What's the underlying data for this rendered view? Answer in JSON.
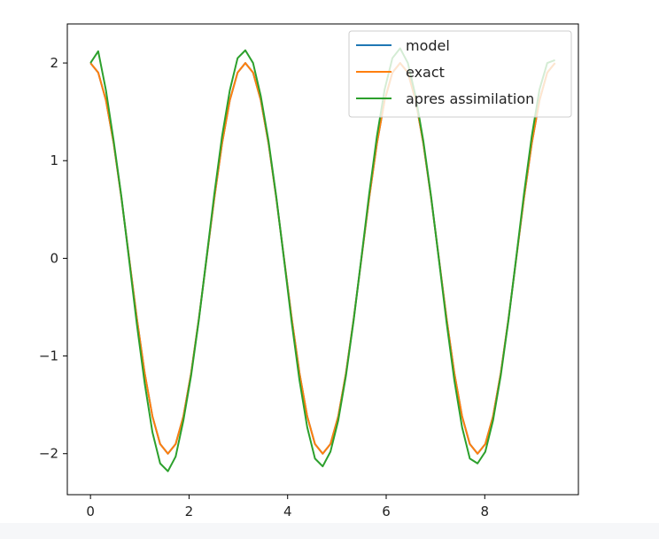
{
  "colors": {
    "model": "#1f77b4",
    "exact": "#ff7f0e",
    "apres_assimilation": "#2ca02c"
  },
  "chart_data": {
    "type": "line",
    "xlim": [
      -0.47,
      9.9
    ],
    "ylim": [
      -2.42,
      2.4
    ],
    "x_ticks": [
      0,
      2,
      4,
      6,
      8
    ],
    "y_ticks": [
      2,
      1,
      0,
      -1,
      -2
    ],
    "x_tick_labels": [
      "0",
      "2",
      "4",
      "6",
      "8"
    ],
    "y_tick_labels": [
      "2",
      "1",
      "0",
      "−1",
      "−2"
    ],
    "legend_position": "top-right",
    "series": [
      {
        "name": "model",
        "color": "#1f77b4",
        "x": [
          0,
          0.157,
          0.314,
          0.471,
          0.628,
          0.785,
          0.942,
          1.1,
          1.257,
          1.414,
          1.571,
          1.728,
          1.885,
          2.042,
          2.199,
          2.356,
          2.513,
          2.67,
          2.827,
          2.985,
          3.142,
          3.299,
          3.456,
          3.613,
          3.77,
          3.927,
          4.084,
          4.241,
          4.398,
          4.555,
          4.712,
          4.869,
          5.027,
          5.184,
          5.341,
          5.498,
          5.655,
          5.812,
          5.969,
          6.126,
          6.283,
          6.44,
          6.597,
          6.754,
          6.912,
          7.069,
          7.226,
          7.383,
          7.54,
          7.697,
          7.854,
          8.011,
          8.168,
          8.325,
          8.482,
          8.639,
          8.796,
          8.954,
          9.111,
          9.268,
          9.425
        ],
        "y": [
          2.0,
          1.902,
          1.618,
          1.176,
          0.618,
          0.0,
          -0.618,
          -1.176,
          -1.618,
          -1.902,
          -2.0,
          -1.902,
          -1.618,
          -1.176,
          -0.618,
          0.0,
          0.618,
          1.176,
          1.618,
          1.902,
          2.0,
          1.902,
          1.618,
          1.176,
          0.618,
          0.0,
          -0.618,
          -1.176,
          -1.618,
          -1.902,
          -2.0,
          -1.902,
          -1.618,
          -1.176,
          -0.618,
          0.0,
          0.618,
          1.176,
          1.618,
          1.902,
          2.0,
          1.902,
          1.618,
          1.176,
          0.618,
          0.0,
          -0.618,
          -1.176,
          -1.618,
          -1.902,
          -2.0,
          -1.902,
          -1.618,
          -1.176,
          -0.618,
          0.0,
          0.618,
          1.176,
          1.618,
          1.902,
          2.0
        ]
      },
      {
        "name": "exact",
        "color": "#ff7f0e",
        "x": [
          0,
          0.157,
          0.314,
          0.471,
          0.628,
          0.785,
          0.942,
          1.1,
          1.257,
          1.414,
          1.571,
          1.728,
          1.885,
          2.042,
          2.199,
          2.356,
          2.513,
          2.67,
          2.827,
          2.985,
          3.142,
          3.299,
          3.456,
          3.613,
          3.77,
          3.927,
          4.084,
          4.241,
          4.398,
          4.555,
          4.712,
          4.869,
          5.027,
          5.184,
          5.341,
          5.498,
          5.655,
          5.812,
          5.969,
          6.126,
          6.283,
          6.44,
          6.597,
          6.754,
          6.912,
          7.069,
          7.226,
          7.383,
          7.54,
          7.697,
          7.854,
          8.011,
          8.168,
          8.325,
          8.482,
          8.639,
          8.796,
          8.954,
          9.111,
          9.268,
          9.425
        ],
        "y": [
          2.0,
          1.902,
          1.618,
          1.176,
          0.618,
          0.0,
          -0.618,
          -1.176,
          -1.618,
          -1.902,
          -2.0,
          -1.902,
          -1.618,
          -1.176,
          -0.618,
          0.0,
          0.618,
          1.176,
          1.618,
          1.902,
          2.0,
          1.902,
          1.618,
          1.176,
          0.618,
          0.0,
          -0.618,
          -1.176,
          -1.618,
          -1.902,
          -2.0,
          -1.902,
          -1.618,
          -1.176,
          -0.618,
          0.0,
          0.618,
          1.176,
          1.618,
          1.902,
          2.0,
          1.902,
          1.618,
          1.176,
          0.618,
          0.0,
          -0.618,
          -1.176,
          -1.618,
          -1.902,
          -2.0,
          -1.902,
          -1.618,
          -1.176,
          -0.618,
          0.0,
          0.618,
          1.176,
          1.618,
          1.902,
          2.0
        ]
      },
      {
        "name": "apres assimilation",
        "color": "#2ca02c",
        "x": [
          0,
          0.157,
          0.314,
          0.471,
          0.628,
          0.785,
          0.942,
          1.1,
          1.257,
          1.414,
          1.571,
          1.728,
          1.885,
          2.042,
          2.199,
          2.356,
          2.513,
          2.67,
          2.827,
          2.985,
          3.142,
          3.299,
          3.456,
          3.613,
          3.77,
          3.927,
          4.084,
          4.241,
          4.398,
          4.555,
          4.712,
          4.869,
          5.027,
          5.184,
          5.341,
          5.498,
          5.655,
          5.812,
          5.969,
          6.126,
          6.283,
          6.44,
          6.597,
          6.754,
          6.912,
          7.069,
          7.226,
          7.383,
          7.54,
          7.697,
          7.854,
          8.011,
          8.168,
          8.325,
          8.482,
          8.639,
          8.796,
          8.954,
          9.111,
          9.268,
          9.425
        ],
        "y": [
          2.0,
          2.12,
          1.72,
          1.2,
          0.63,
          -0.02,
          -0.68,
          -1.28,
          -1.78,
          -2.1,
          -2.18,
          -2.03,
          -1.66,
          -1.2,
          -0.63,
          0.01,
          0.66,
          1.25,
          1.72,
          2.05,
          2.13,
          2.0,
          1.66,
          1.2,
          0.63,
          -0.01,
          -0.66,
          -1.25,
          -1.73,
          -2.05,
          -2.13,
          -1.98,
          -1.66,
          -1.2,
          -0.63,
          0.01,
          0.66,
          1.25,
          1.73,
          2.05,
          2.15,
          2.0,
          1.66,
          1.2,
          0.63,
          -0.01,
          -0.66,
          -1.25,
          -1.73,
          -2.05,
          -2.1,
          -1.98,
          -1.66,
          -1.2,
          -0.63,
          0.01,
          0.66,
          1.25,
          1.73,
          2.0,
          2.03
        ]
      }
    ]
  }
}
